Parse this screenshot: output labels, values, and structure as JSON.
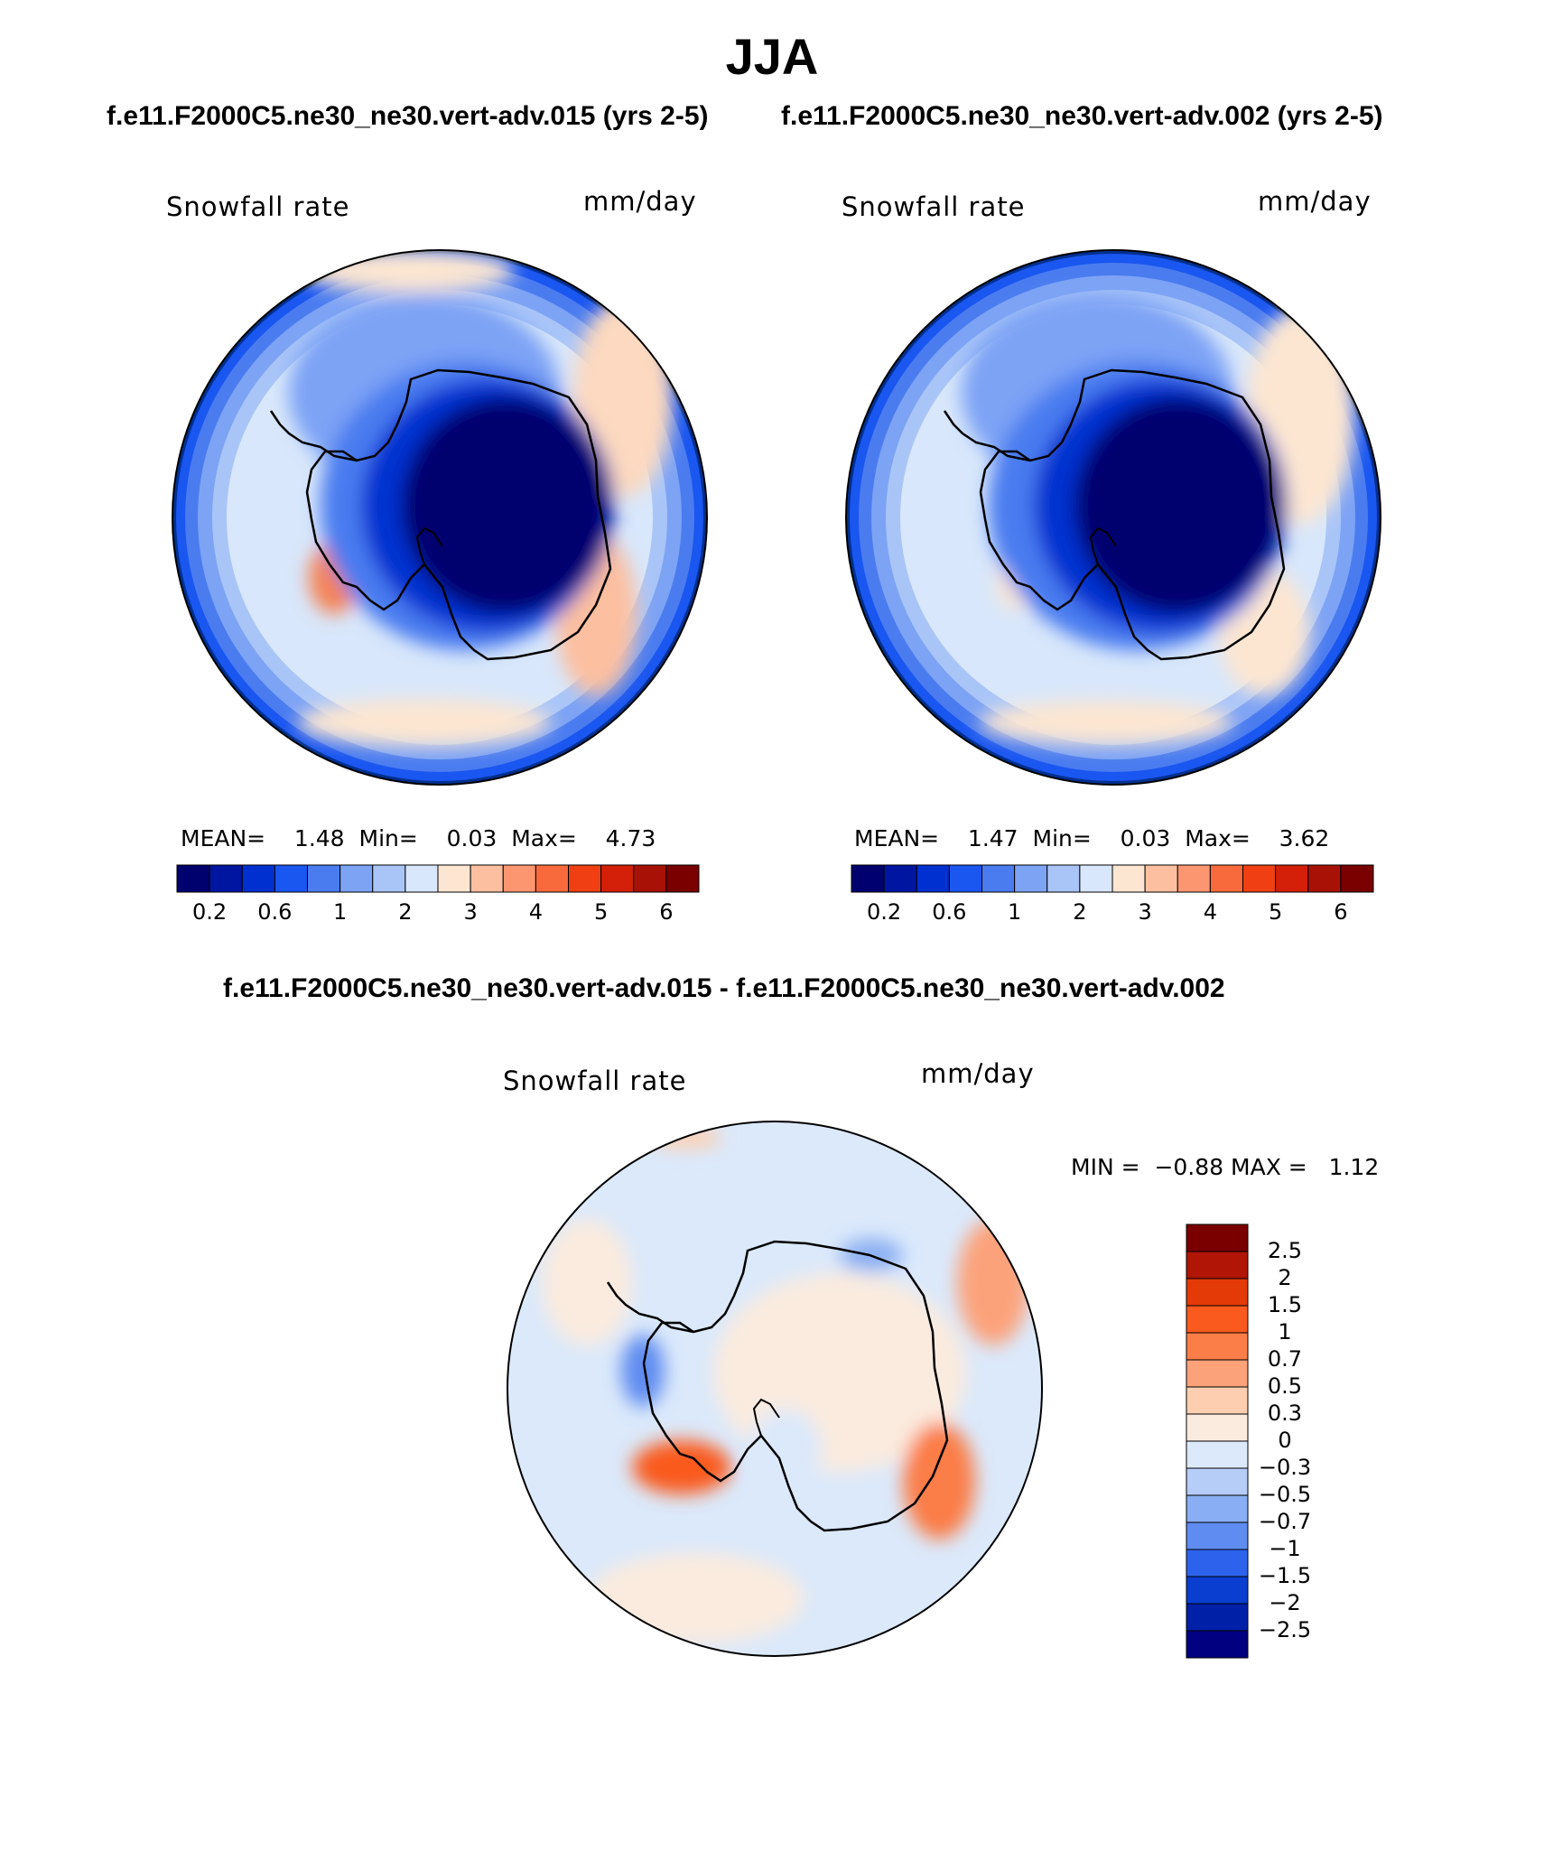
{
  "title": "JJA",
  "cases": {
    "left": "f.e11.F2000C5.ne30_ne30.vert-adv.015 (yrs 2-5)",
    "right": "f.e11.F2000C5.ne30_ne30.vert-adv.002 (yrs 2-5)",
    "diff": "f.e11.F2000C5.ne30_ne30.vert-adv.015 - f.e11.F2000C5.ne30_ne30.vert-adv.002"
  },
  "panels": [
    {
      "id": "case1",
      "variable": "Snowfall rate",
      "units": "mm/day",
      "stats": {
        "mean_label": "MEAN=",
        "mean": "1.48",
        "min_label": "Min=",
        "min": "0.03",
        "max_label": "Max=",
        "max": "4.73"
      }
    },
    {
      "id": "case2",
      "variable": "Snowfall rate",
      "units": "mm/day",
      "stats": {
        "mean_label": "MEAN=",
        "mean": "1.47",
        "min_label": "Min=",
        "min": "0.03",
        "max_label": "Max=",
        "max": "3.62"
      }
    },
    {
      "id": "difference",
      "variable": "Snowfall rate",
      "units": "mm/day",
      "stats": {
        "min_label": "MIN =",
        "min": "−0.88",
        "max_label": "MAX =",
        "max": "1.12"
      }
    }
  ],
  "colorbars": {
    "main": {
      "colors": [
        "#00006e",
        "#0015a0",
        "#0030d0",
        "#1a56f0",
        "#4a7cf0",
        "#7da3f5",
        "#a9c5f8",
        "#d8e7fb",
        "#fce6d2",
        "#fcc0a0",
        "#fb9670",
        "#f86a3c",
        "#f03f12",
        "#d42008",
        "#a81206",
        "#7a0000"
      ],
      "tick_labels": [
        "0.2",
        "0.6",
        "1",
        "2",
        "3",
        "4",
        "5",
        "6"
      ]
    },
    "diff": {
      "colors": [
        "#7a0000",
        "#b01505",
        "#e33a08",
        "#fa5a1e",
        "#fb7d47",
        "#fca27a",
        "#fdcfb0",
        "#fbebde",
        "#dbe9fb",
        "#b5cdf7",
        "#89aef3",
        "#5f8cf0",
        "#2d63ec",
        "#0a3ed0",
        "#0020a8",
        "#000080"
      ],
      "tick_labels": [
        "2.5",
        "2",
        "1.5",
        "1",
        "0.7",
        "0.5",
        "0.3",
        "0",
        "−0.3",
        "−0.5",
        "−0.7",
        "−1",
        "−1.5",
        "−2",
        "−2.5"
      ]
    }
  }
}
